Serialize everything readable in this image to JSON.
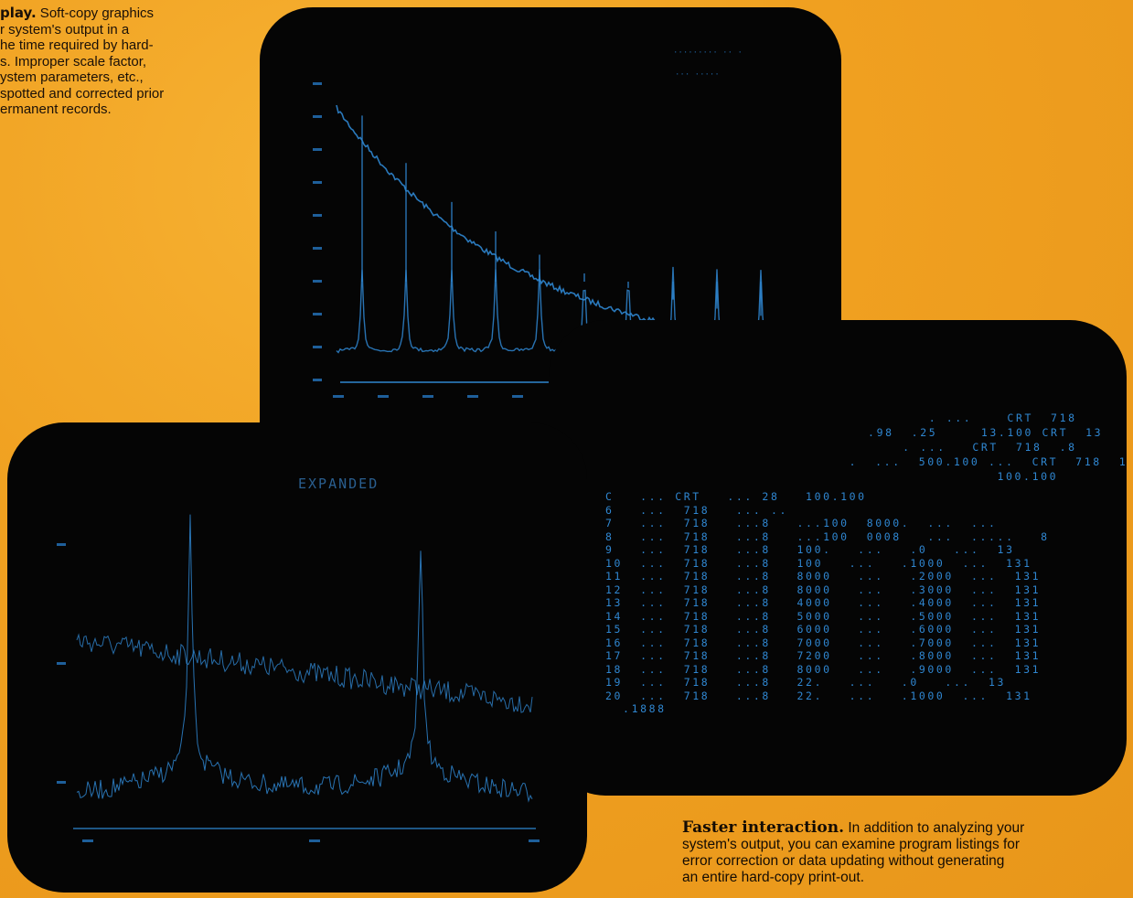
{
  "captions": {
    "top": {
      "bold": "play.",
      "text": " Soft-copy graphics\nr system's output in a\nhe time required by hard-\ns. Improper scale factor,\nystem parameters, etc.,\nspotted and corrected prior\nermanent records."
    },
    "bottom": {
      "bold": "Faster interaction.",
      "text": " In addition to analyzing your\nsystem's output, you can examine program listings for\nerror correction or data updating without generating\nan entire hard-copy print-out."
    }
  },
  "screens": {
    "left": {
      "title": "EXPANDED"
    },
    "right": {
      "header_lines": [
        "         . ...    CRT  718",
        "  .98  .25     13.100 CRT  13",
        "      . ...   CRT  718  .8",
        "   .  ...  500.100 ...  CRT  718  1",
        "                    100.100"
      ],
      "listing_lines": [
        "C   ... CRT   ... 28   100.100",
        "6   ...  718   ... ..",
        "7   ...  718   ...8   ...100  8000.  ...  ...",
        "8   ...  718   ...8   ...100  0008   ...  .....   8",
        "9   ...  718   ...8   100.   ...   .0   ...  13",
        "10  ...  718   ...8   100   ...   .1000  ...  131",
        "11  ...  718   ...8   8000   ...   .2000  ...  131",
        "12  ...  718   ...8   8000   ...   .3000  ...  131",
        "13  ...  718   ...8   4000   ...   .4000  ...  131",
        "14  ...  718   ...8   5000   ...   .5000  ...  131",
        "15  ...  718   ...8   6000   ...   .6000  ...  131",
        "16  ...  718   ...8   7000   ...   .7000  ...  131",
        "17  ...  718   ...8   7200   ...   .8000  ...  131",
        "18  ...  718   ...8   8000   ...   .9000  ...  131",
        "19  ...  718   ...8   22.   ...   .0   ...  13",
        "20  ...  718   ...8   22.   ...   .1000  ...  131",
        "  .1888"
      ]
    }
  },
  "colors": {
    "background": "#f0a020",
    "screen": "#050505",
    "trace": "#2f86d0"
  }
}
